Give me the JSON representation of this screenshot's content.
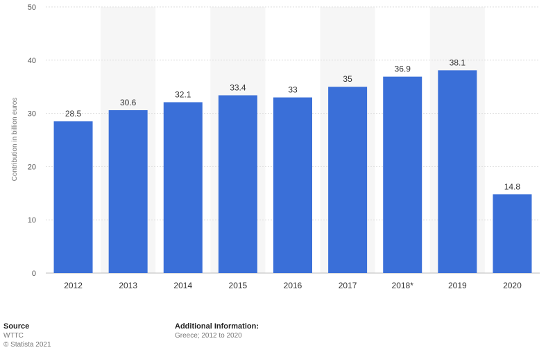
{
  "chart_data": {
    "type": "bar",
    "ylabel": "Contribution in billion euros",
    "categories": [
      "2012",
      "2013",
      "2014",
      "2015",
      "2016",
      "2017",
      "2018*",
      "2019",
      "2020"
    ],
    "values": [
      28.5,
      30.6,
      32.1,
      33.4,
      33,
      35,
      36.9,
      38.1,
      14.8
    ],
    "value_labels": [
      "28.5",
      "30.6",
      "32.1",
      "33.4",
      "33",
      "35",
      "36.9",
      "38.1",
      "14.8"
    ],
    "ylim": [
      0,
      50
    ],
    "yticks": [
      "0",
      "10",
      "20",
      "30",
      "40",
      "50"
    ],
    "bar_color": "#3a6fd8",
    "grid": true
  },
  "footer": {
    "source_title": "Source",
    "source_name": "WTTC",
    "copyright": "© Statista 2021",
    "additional_title": "Additional Information:",
    "additional_text": "Greece; 2012 to 2020"
  }
}
